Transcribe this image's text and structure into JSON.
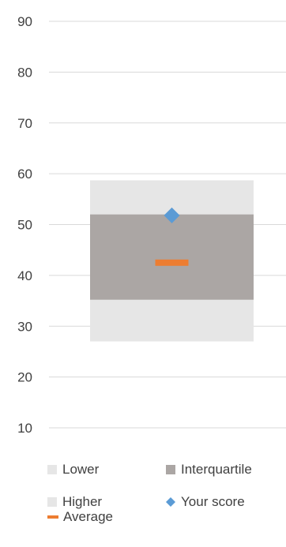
{
  "chart_data": {
    "type": "box",
    "ylim": [
      10,
      90
    ],
    "yticks": [
      10,
      20,
      30,
      40,
      50,
      60,
      70,
      80,
      90
    ],
    "grid": true,
    "legend_placement": "bottom",
    "lower": {
      "name": "Lower",
      "from": 27,
      "to": 35.2,
      "color": "#e6e6e6"
    },
    "interquartile": {
      "name": "Interquartile",
      "from": 35.2,
      "to": 52,
      "color": "#aba6a4"
    },
    "higher": {
      "name": "Higher",
      "from": 52,
      "to": 58.7,
      "color": "#e6e6e6"
    },
    "your_score": {
      "name": "Your score",
      "value": 51.8,
      "color": "#5b9bd5"
    },
    "average": {
      "name": "Average",
      "value": 42.5,
      "color": "#ed7d31"
    }
  },
  "legend": {
    "lower": "Lower",
    "interquartile": "Interquartile",
    "higher": "Higher",
    "your_score": "Your score",
    "average": "Average"
  },
  "colors": {
    "grid": "#d9d9d9",
    "light_band": "#e6e6e6",
    "iqr_band": "#aba6a4",
    "score": "#5b9bd5",
    "average": "#ed7d31"
  }
}
